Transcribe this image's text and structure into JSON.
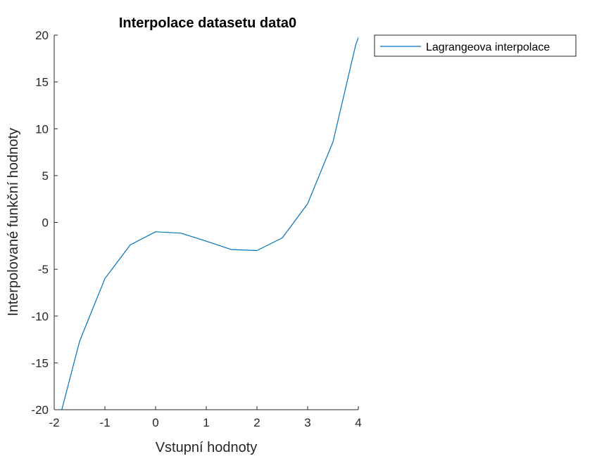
{
  "chart_data": {
    "type": "line",
    "title": "Interpolace datasetu data0",
    "xlabel": "Vstupní hodnoty",
    "ylabel": "Interpolované funkční hodnoty",
    "xlim": [
      -2,
      4
    ],
    "ylim": [
      -20,
      20
    ],
    "xticks": [
      -2,
      -1,
      0,
      1,
      2,
      3,
      4
    ],
    "xtick_labels": [
      "-2",
      "-1",
      "0",
      "1",
      "2",
      "3",
      "4"
    ],
    "yticks": [
      -20,
      -15,
      -10,
      -5,
      0,
      5,
      10,
      15,
      20
    ],
    "ytick_labels": [
      "-20",
      "-15",
      "-10",
      "-5",
      "0",
      "5",
      "10",
      "15",
      "20"
    ],
    "legend_position": "outside-top-right",
    "colors": {
      "line": "#0072bd",
      "axis": "#262626"
    },
    "series": [
      {
        "name": "Lagrangeova interpolace",
        "x": [
          -1.85,
          -1.5,
          -1.0,
          -0.5,
          0.0,
          0.5,
          1.0,
          1.5,
          2.0,
          2.5,
          3.0,
          3.5,
          3.95,
          4.02
        ],
        "y": [
          -20,
          -12.7,
          -6.0,
          -2.4,
          -1.0,
          -1.15,
          -2.0,
          -2.9,
          -3.0,
          -1.65,
          2.0,
          8.6,
          19.0,
          20
        ]
      }
    ]
  }
}
